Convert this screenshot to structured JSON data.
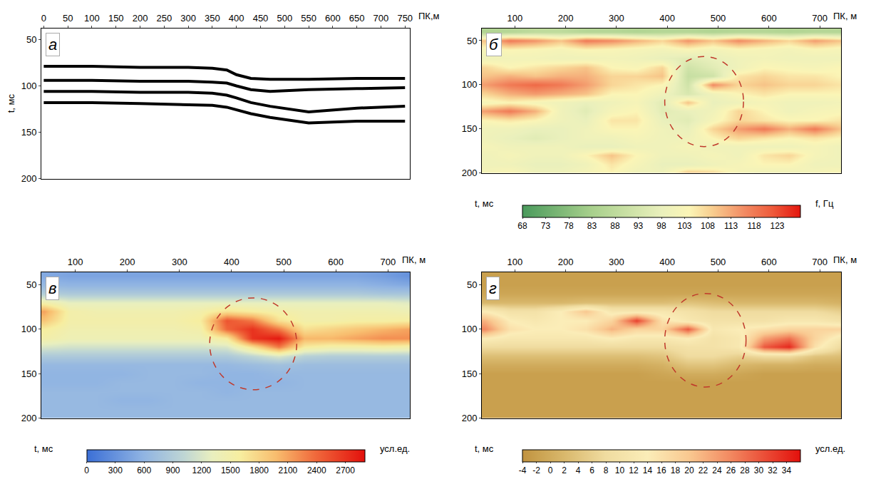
{
  "chart_data": [
    {
      "type": "line",
      "panel_label": "а",
      "x_label": "ПК,м",
      "y_label": "t, мс",
      "x": [
        0,
        100,
        200,
        300,
        350,
        380,
        400,
        430,
        470,
        550,
        650,
        750
      ],
      "series": [
        {
          "color": "#000000",
          "values": [
            79,
            79,
            80,
            80,
            81,
            83,
            88,
            92,
            93,
            93,
            92,
            92
          ]
        },
        {
          "color": "#000000",
          "values": [
            94,
            94,
            95,
            95,
            96,
            97,
            100,
            104,
            106,
            104,
            103,
            102
          ]
        },
        {
          "color": "#000000",
          "values": [
            106,
            106,
            107,
            107,
            108,
            110,
            113,
            118,
            122,
            128,
            124,
            122
          ]
        },
        {
          "color": "#000000",
          "values": [
            118,
            118,
            119,
            120,
            121,
            123,
            126,
            130,
            134,
            140,
            138,
            138
          ]
        }
      ],
      "xlim": [
        -5,
        760
      ],
      "xticks": [
        0,
        50,
        100,
        150,
        200,
        250,
        300,
        350,
        400,
        450,
        500,
        550,
        600,
        650,
        700,
        750
      ],
      "ylim": [
        38,
        200
      ],
      "yticks": [
        50,
        100,
        150,
        200
      ]
    },
    {
      "type": "heatmap",
      "panel_label": "б",
      "x_label": "ПК, м",
      "y_label": "t, мс",
      "x": [
        40,
        90,
        140,
        190,
        240,
        290,
        340,
        390,
        440,
        490,
        540,
        590,
        640,
        690,
        740
      ],
      "y": [
        40,
        50,
        60,
        70,
        80,
        90,
        100,
        110,
        120,
        130,
        140,
        150,
        160,
        170,
        180,
        190,
        200
      ],
      "z": [
        [
          85,
          86,
          88,
          88,
          86,
          86,
          85,
          86,
          86,
          85,
          86,
          86,
          85,
          86,
          86
        ],
        [
          110,
          118,
          115,
          110,
          118,
          116,
          112,
          108,
          115,
          110,
          116,
          112,
          108,
          114,
          110
        ],
        [
          102,
          104,
          103,
          102,
          104,
          103,
          102,
          101,
          103,
          101,
          103,
          102,
          101,
          103,
          102
        ],
        [
          100,
          101,
          101,
          100,
          100,
          101,
          100,
          98,
          96,
          98,
          100,
          101,
          100,
          100,
          100
        ],
        [
          108,
          104,
          106,
          108,
          110,
          104,
          103,
          108,
          92,
          96,
          100,
          104,
          103,
          102,
          104
        ],
        [
          110,
          112,
          110,
          112,
          112,
          108,
          108,
          110,
          90,
          92,
          106,
          108,
          106,
          106,
          104
        ],
        [
          114,
          118,
          120,
          118,
          114,
          108,
          106,
          104,
          92,
          116,
          108,
          110,
          108,
          108,
          106
        ],
        [
          108,
          112,
          114,
          112,
          110,
          104,
          104,
          100,
          94,
          100,
          104,
          106,
          104,
          104,
          104
        ],
        [
          102,
          104,
          102,
          100,
          98,
          100,
          102,
          96,
          110,
          98,
          100,
          102,
          100,
          100,
          101
        ],
        [
          114,
          118,
          112,
          100,
          96,
          102,
          104,
          96,
          98,
          100,
          108,
          104,
          100,
          102,
          103
        ],
        [
          104,
          106,
          104,
          100,
          98,
          106,
          106,
          98,
          96,
          102,
          108,
          106,
          104,
          104,
          106
        ],
        [
          100,
          100,
          98,
          98,
          100,
          104,
          104,
          100,
          98,
          108,
          114,
          118,
          112,
          118,
          110
        ],
        [
          100,
          98,
          96,
          98,
          100,
          100,
          102,
          100,
          100,
          104,
          108,
          106,
          104,
          106,
          104
        ],
        [
          102,
          100,
          100,
          100,
          98,
          98,
          100,
          100,
          102,
          100,
          100,
          100,
          100,
          102,
          100
        ],
        [
          100,
          102,
          100,
          100,
          104,
          110,
          104,
          100,
          100,
          102,
          100,
          106,
          108,
          102,
          100
        ],
        [
          100,
          100,
          98,
          98,
          100,
          106,
          102,
          98,
          98,
          100,
          102,
          104,
          104,
          100,
          100
        ],
        [
          102,
          104,
          100,
          100,
          102,
          104,
          100,
          100,
          110,
          108,
          102,
          100,
          100,
          102,
          104
        ]
      ],
      "xlim": [
        35,
        742
      ],
      "xticks": [
        100,
        200,
        300,
        400,
        500,
        600,
        700
      ],
      "ylim": [
        36,
        200
      ],
      "yticks": [
        50,
        100,
        150,
        200
      ],
      "colorbar": {
        "range": [
          68,
          128
        ],
        "ticks": [
          68,
          73,
          78,
          83,
          88,
          93,
          98,
          103,
          108,
          113,
          118,
          123
        ],
        "label": "f, Гц"
      },
      "highlight": {
        "x": [
          395,
          550
        ],
        "y": [
          68,
          170
        ]
      }
    },
    {
      "type": "heatmap",
      "panel_label": "в",
      "x_label": "ПК, м",
      "y_label": "t, мс",
      "x": [
        40,
        90,
        140,
        190,
        240,
        290,
        340,
        390,
        440,
        490,
        540,
        590,
        640,
        690,
        740
      ],
      "y": [
        40,
        50,
        60,
        70,
        80,
        90,
        100,
        110,
        120,
        130,
        140,
        150,
        160,
        170,
        180,
        190,
        200
      ],
      "z": [
        [
          500,
          450,
          450,
          450,
          450,
          450,
          450,
          450,
          450,
          450,
          450,
          450,
          450,
          400,
          300
        ],
        [
          650,
          600,
          600,
          600,
          600,
          600,
          600,
          600,
          600,
          600,
          600,
          600,
          600,
          550,
          500
        ],
        [
          900,
          850,
          850,
          850,
          850,
          850,
          850,
          850,
          850,
          850,
          850,
          850,
          850,
          800,
          800
        ],
        [
          1500,
          1300,
          1300,
          1300,
          1300,
          1300,
          1300,
          1300,
          1300,
          1300,
          1300,
          1300,
          1300,
          1300,
          1250
        ],
        [
          2100,
          1500,
          1450,
          1450,
          1450,
          1450,
          1500,
          1700,
          1600,
          1500,
          1450,
          1450,
          1450,
          1450,
          1400
        ],
        [
          1900,
          1500,
          1500,
          1500,
          1500,
          1500,
          1600,
          2500,
          2300,
          1700,
          1500,
          1500,
          1550,
          1550,
          1600
        ],
        [
          1600,
          1450,
          1450,
          1450,
          1450,
          1450,
          1500,
          2400,
          2700,
          2300,
          1700,
          1800,
          1900,
          2000,
          2100
        ],
        [
          1500,
          1400,
          1400,
          1400,
          1400,
          1400,
          1400,
          1600,
          2700,
          2850,
          2000,
          2000,
          2100,
          2200,
          2200
        ],
        [
          1200,
          1150,
          1150,
          1150,
          1150,
          1150,
          1150,
          1200,
          1700,
          2300,
          1600,
          1500,
          1500,
          1550,
          1500
        ],
        [
          850,
          850,
          850,
          850,
          850,
          850,
          850,
          850,
          1000,
          1200,
          950,
          900,
          900,
          900,
          900
        ],
        [
          650,
          650,
          650,
          650,
          650,
          650,
          650,
          650,
          700,
          750,
          700,
          700,
          700,
          700,
          700
        ],
        [
          600,
          600,
          600,
          600,
          650,
          650,
          650,
          600,
          600,
          650,
          650,
          650,
          650,
          650,
          650
        ],
        [
          600,
          600,
          600,
          650,
          650,
          650,
          600,
          600,
          600,
          600,
          650,
          650,
          650,
          650,
          650
        ],
        [
          650,
          650,
          650,
          650,
          650,
          650,
          650,
          600,
          650,
          650,
          650,
          650,
          650,
          650,
          650
        ],
        [
          650,
          650,
          650,
          600,
          600,
          650,
          650,
          650,
          650,
          650,
          650,
          650,
          650,
          650,
          650
        ],
        [
          650,
          650,
          650,
          650,
          650,
          650,
          650,
          650,
          650,
          650,
          650,
          650,
          650,
          650,
          650
        ],
        [
          650,
          650,
          650,
          650,
          650,
          650,
          650,
          650,
          650,
          650,
          650,
          650,
          650,
          650,
          650
        ]
      ],
      "xlim": [
        35,
        742
      ],
      "xticks": [
        100,
        200,
        300,
        400,
        500,
        600,
        700
      ],
      "ylim": [
        36,
        200
      ],
      "yticks": [
        50,
        100,
        150,
        200
      ],
      "colorbar": {
        "range": [
          0,
          2900
        ],
        "ticks": [
          0,
          300,
          600,
          900,
          1200,
          1500,
          1800,
          2100,
          2400,
          2700
        ],
        "label": "усл.ед."
      },
      "highlight": {
        "x": [
          358,
          525
        ],
        "y": [
          65,
          168
        ]
      }
    },
    {
      "type": "heatmap",
      "panel_label": "г",
      "x_label": "ПК, м",
      "y_label": "t, мс",
      "x": [
        40,
        90,
        140,
        190,
        240,
        290,
        340,
        390,
        440,
        490,
        540,
        590,
        640,
        690,
        740
      ],
      "y": [
        40,
        50,
        60,
        70,
        80,
        90,
        100,
        110,
        120,
        130,
        140,
        150,
        160,
        170,
        180,
        190,
        200
      ],
      "z": [
        [
          -2,
          -2,
          -2,
          -2,
          -2,
          -2,
          -2,
          -2,
          -2,
          -2,
          -2,
          -2,
          -2,
          -2,
          -2
        ],
        [
          -2,
          -2,
          -2,
          -2,
          -2,
          -2,
          -2,
          -2,
          -2,
          -2,
          -2,
          -2,
          -2,
          -2,
          -2
        ],
        [
          -1,
          -1,
          -1,
          -1,
          -1,
          -1,
          -1,
          -1,
          -1,
          -1,
          -1,
          -1,
          -1,
          -1,
          -1
        ],
        [
          2,
          2,
          2,
          2,
          3,
          3,
          3,
          3,
          4,
          3,
          2,
          2,
          2,
          2,
          1
        ],
        [
          14,
          10,
          10,
          14,
          20,
          12,
          12,
          12,
          10,
          8,
          8,
          8,
          8,
          8,
          6
        ],
        [
          22,
          14,
          12,
          14,
          14,
          18,
          32,
          16,
          12,
          10,
          10,
          10,
          12,
          12,
          10
        ],
        [
          26,
          16,
          14,
          14,
          16,
          22,
          18,
          18,
          30,
          12,
          14,
          16,
          18,
          18,
          18
        ],
        [
          14,
          12,
          12,
          12,
          12,
          14,
          12,
          12,
          14,
          10,
          12,
          24,
          28,
          18,
          12
        ],
        [
          8,
          8,
          8,
          8,
          8,
          8,
          8,
          8,
          10,
          10,
          12,
          30,
          34,
          16,
          8
        ],
        [
          3,
          3,
          3,
          3,
          3,
          3,
          3,
          4,
          8,
          8,
          6,
          8,
          8,
          4,
          3
        ],
        [
          0,
          0,
          0,
          0,
          0,
          0,
          0,
          1,
          4,
          4,
          2,
          1,
          1,
          0,
          0
        ],
        [
          -2,
          -2,
          -2,
          -2,
          -2,
          -2,
          -2,
          -1,
          0,
          0,
          -1,
          -2,
          -2,
          -2,
          -2
        ],
        [
          -2,
          -2,
          -2,
          -2,
          -2,
          -2,
          -2,
          -2,
          -2,
          -2,
          -2,
          -2,
          -2,
          -2,
          -2
        ],
        [
          -2,
          -2,
          -2,
          -2,
          -2,
          -2,
          -2,
          -2,
          -2,
          -2,
          -2,
          -2,
          -2,
          -2,
          -2
        ],
        [
          -2,
          -2,
          -2,
          -2,
          -2,
          -2,
          -2,
          -2,
          -2,
          -2,
          -2,
          -2,
          -2,
          -2,
          -2
        ],
        [
          -2,
          -2,
          -2,
          -2,
          -2,
          -2,
          -2,
          -2,
          -2,
          -2,
          -2,
          -2,
          -2,
          -2,
          -2
        ],
        [
          -2,
          -2,
          -2,
          -2,
          -2,
          -2,
          -2,
          -2,
          -2,
          -2,
          -2,
          -2,
          -2,
          -2,
          -2
        ]
      ],
      "xlim": [
        35,
        742
      ],
      "xticks": [
        100,
        200,
        300,
        400,
        500,
        600,
        700
      ],
      "ylim": [
        36,
        200
      ],
      "yticks": [
        50,
        100,
        150,
        200
      ],
      "colorbar": {
        "range": [
          -4,
          36
        ],
        "ticks": [
          -4,
          -2,
          0,
          2,
          4,
          6,
          8,
          10,
          12,
          14,
          16,
          18,
          20,
          22,
          24,
          26,
          28,
          30,
          32,
          34
        ],
        "label": "усл.ед."
      },
      "highlight": {
        "x": [
          395,
          555
        ],
        "y": [
          60,
          165
        ]
      }
    }
  ]
}
